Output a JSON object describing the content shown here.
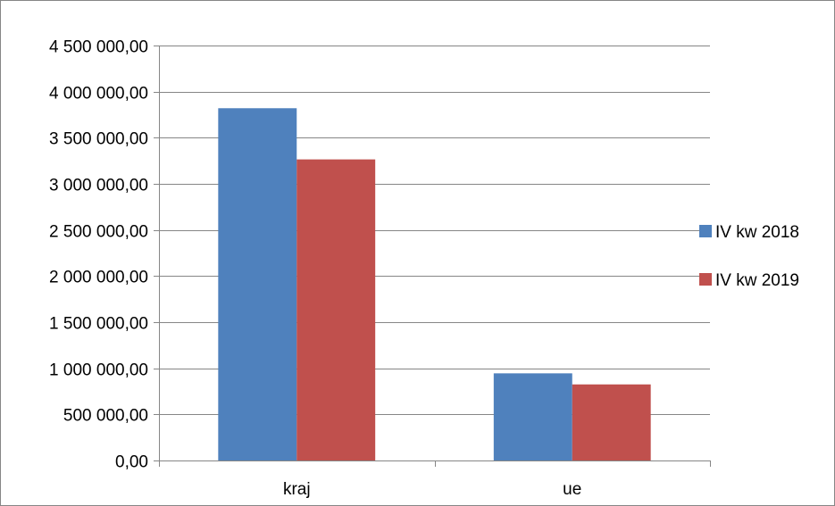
{
  "chart_data": {
    "type": "bar",
    "categories": [
      "kraj",
      "ue"
    ],
    "series": [
      {
        "name": "IV kw 2018",
        "values": [
          3820000,
          945000
        ],
        "color": "#4F81BD"
      },
      {
        "name": "IV kw 2019",
        "values": [
          3265000,
          825000
        ],
        "color": "#C0504D"
      }
    ],
    "ylim": [
      0,
      4500000
    ],
    "yticks": [
      0,
      500000,
      1000000,
      1500000,
      2000000,
      2500000,
      3000000,
      3500000,
      4000000,
      4500000
    ],
    "ytick_labels": [
      "0,00",
      "500 000,00",
      "1 000 000,00",
      "1 500 000,00",
      "2 000 000,00",
      "2 500 000,00",
      "3 000 000,00",
      "3 500 000,00",
      "4 000 000,00",
      "4 500 000,00"
    ],
    "title": "",
    "xlabel": "",
    "ylabel": "",
    "grid": true,
    "legend_position": "right"
  }
}
